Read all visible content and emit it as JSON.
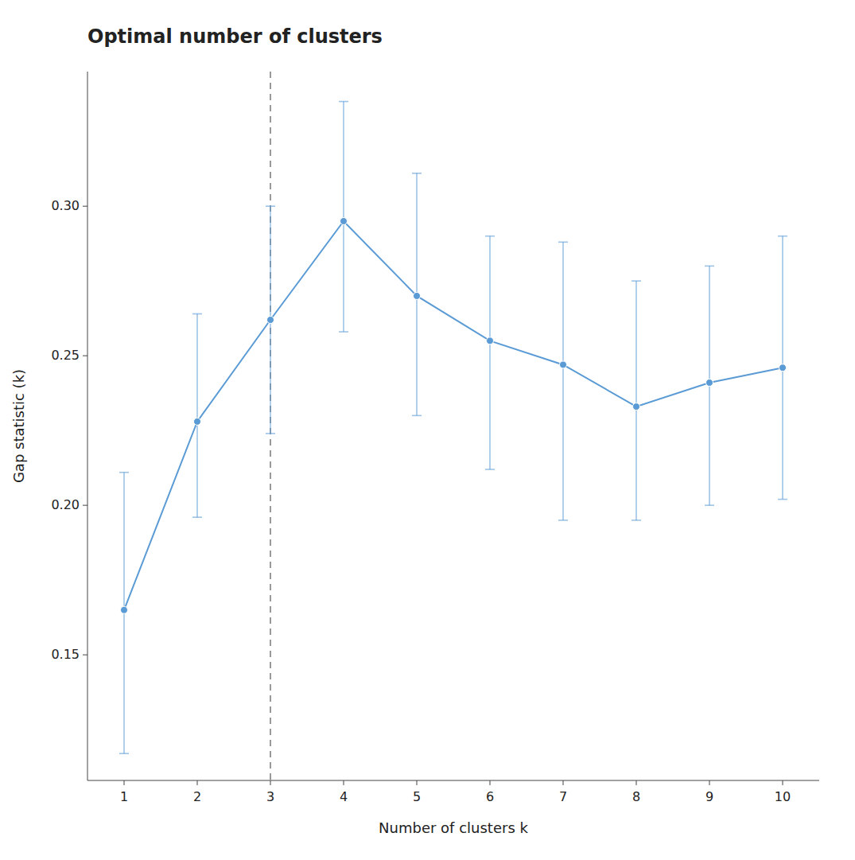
{
  "chart_data": {
    "type": "line",
    "title": "Optimal number of clusters",
    "x_label": "Number of clusters k",
    "y_label": "Gap statistic (k)",
    "x": [
      1,
      2,
      3,
      4,
      5,
      6,
      7,
      8,
      9,
      10
    ],
    "values": [
      0.165,
      0.228,
      0.262,
      0.295,
      0.27,
      0.255,
      0.247,
      0.233,
      0.241,
      0.246
    ],
    "error_lower": [
      0.048,
      0.032,
      0.038,
      0.037,
      0.04,
      0.043,
      0.052,
      0.038,
      0.041,
      0.044
    ],
    "error_upper": [
      0.046,
      0.036,
      0.038,
      0.04,
      0.041,
      0.035,
      0.041,
      0.042,
      0.039,
      0.044
    ],
    "color": "#5b9bd5",
    "marker": "circle",
    "line_style": "solid",
    "reference_line": {
      "x": 3,
      "line_style": "dashed"
    },
    "xlim": [
      0.5,
      10.5
    ],
    "xticks": [
      1,
      2,
      3,
      4,
      5,
      6,
      7,
      8,
      9,
      10
    ],
    "ylim": [
      0.108,
      0.345
    ],
    "yticks": [
      0.15,
      {
        "value": 0.2,
        "label": "0.20"
      },
      0.25,
      {
        "value": 0.3,
        "label": "0.30"
      }
    ],
    "grid": false
  }
}
